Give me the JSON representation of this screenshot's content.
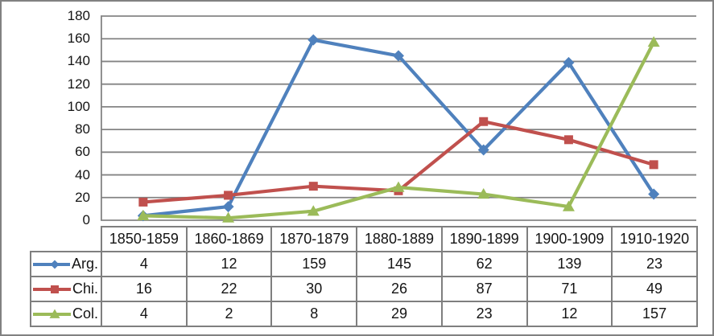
{
  "chart_data": {
    "type": "line",
    "title": "",
    "categories": [
      "1850-1859",
      "1860-1869",
      "1870-1879",
      "1880-1889",
      "1890-1899",
      "1900-1909",
      "1910-1920"
    ],
    "series": [
      {
        "name": "Arg.",
        "color": "#4F81BD",
        "marker": "diamond",
        "values": [
          4,
          12,
          159,
          145,
          62,
          139,
          23
        ]
      },
      {
        "name": "Chi.",
        "color": "#C0504D",
        "marker": "square",
        "values": [
          16,
          22,
          30,
          26,
          87,
          71,
          49
        ]
      },
      {
        "name": "Col.",
        "color": "#9BBB59",
        "marker": "triangle",
        "values": [
          4,
          2,
          8,
          29,
          23,
          12,
          157
        ]
      }
    ],
    "y_axis": {
      "min": 0,
      "max": 180,
      "step": 20,
      "tick_labels": [
        "0",
        "20",
        "40",
        "60",
        "80",
        "100",
        "120",
        "140",
        "160",
        "180"
      ]
    },
    "grid": true,
    "legend_position": "data-table-left",
    "data_table_shown": true
  },
  "style": {
    "grid_color": "#848484",
    "axis_line_color": "#848484",
    "table_border_color": "#7f7f7f",
    "frame_border_color": "#818181",
    "text_color": "#141414",
    "background": "#ffffff"
  }
}
